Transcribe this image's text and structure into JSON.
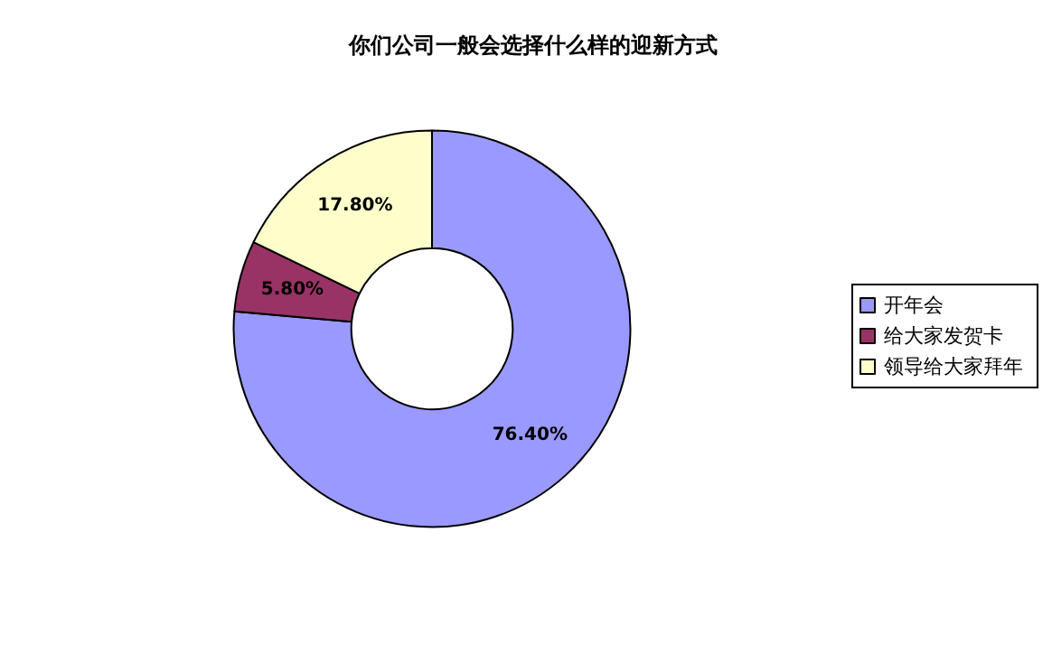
{
  "chart_data": {
    "type": "donut",
    "title": "你们公司一般会选择什么样的迎新方式",
    "categories": [
      "开年会",
      "给大家发贺卡",
      "领导给大家拜年"
    ],
    "values": [
      76.4,
      5.8,
      17.8
    ],
    "value_labels": [
      "76.40%",
      "5.80%",
      "17.80%"
    ],
    "colors": [
      "#9999ff",
      "#993366",
      "#ffffcc"
    ],
    "legend": "right"
  }
}
